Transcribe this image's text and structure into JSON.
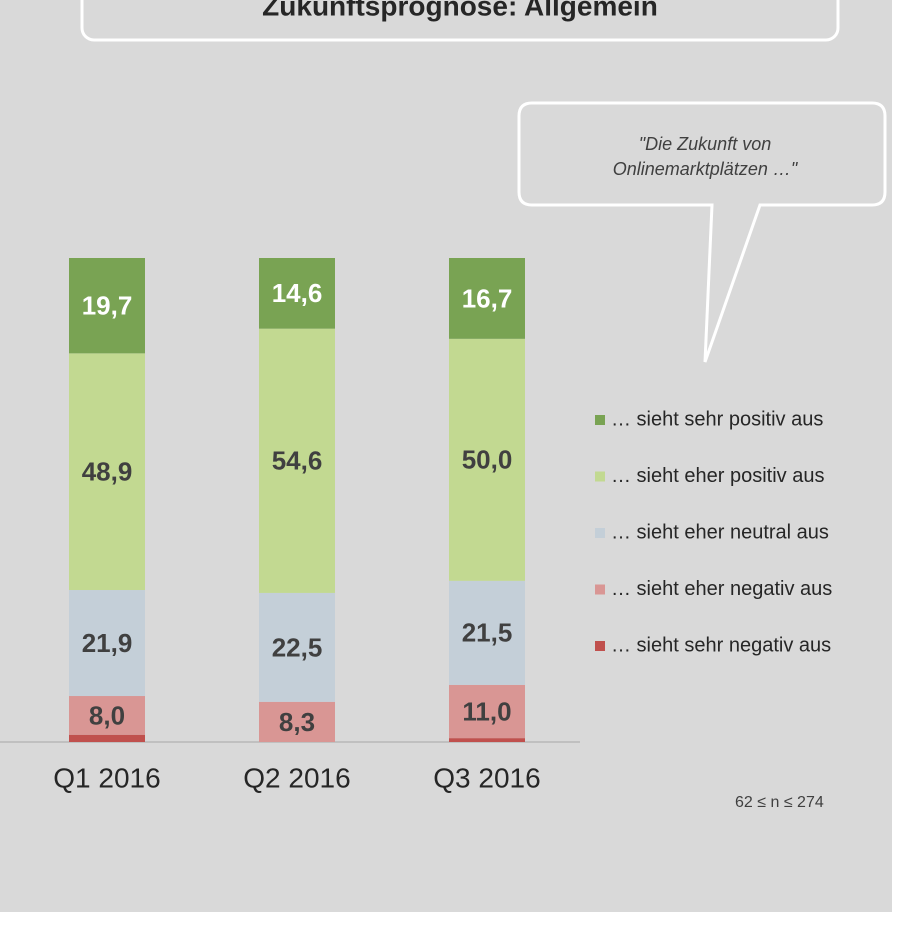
{
  "chart_data": {
    "type": "bar",
    "stacked": true,
    "title": "Zukunftsprognose: Allgemein",
    "annotation": [
      "\"Die Zukunft von",
      "Onlinemarktplätzen …\""
    ],
    "note": "62 ≤ n ≤ 274",
    "categories": [
      "Q1 2016",
      "Q2 2016",
      "Q3 2016"
    ],
    "ylim": [
      0,
      100
    ],
    "series": [
      {
        "name": "… sieht sehr positiv aus",
        "color": "#79a353",
        "label_color": "#ffffff",
        "values": [
          19.7,
          14.6,
          16.7
        ],
        "value_labels": [
          "19,7",
          "14,6",
          "16,7"
        ]
      },
      {
        "name": "… sieht eher positiv aus",
        "color": "#c2d991",
        "label_color": "#404040",
        "values": [
          48.9,
          54.6,
          50.0
        ],
        "value_labels": [
          "48,9",
          "54,6",
          "50,0"
        ]
      },
      {
        "name": "… sieht eher neutral aus",
        "color": "#c4cfd8",
        "label_color": "#404040",
        "values": [
          21.9,
          22.5,
          21.5
        ],
        "value_labels": [
          "21,9",
          "22,5",
          "21,5"
        ]
      },
      {
        "name": "… sieht eher negativ aus",
        "color": "#d99694",
        "label_color": "#404040",
        "values": [
          8.0,
          8.3,
          11.0
        ],
        "value_labels": [
          "8,0",
          "8,3",
          "11,0"
        ]
      },
      {
        "name": "… sieht sehr negativ aus",
        "color": "#c0504d",
        "values": [
          1.5,
          0,
          0.8
        ]
      }
    ]
  }
}
